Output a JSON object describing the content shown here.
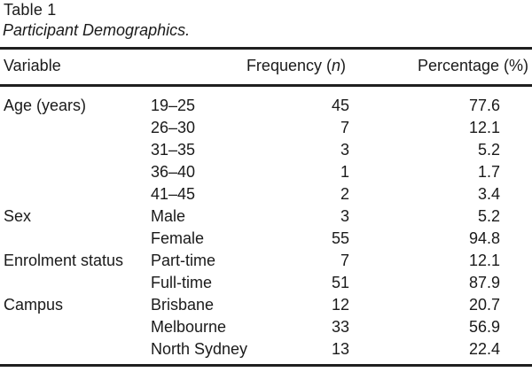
{
  "table": {
    "label": "Table 1",
    "caption": "Participant Demographics.",
    "headers": {
      "variable": "Variable",
      "frequency_pre": "Frequency (",
      "frequency_symbol": "n",
      "frequency_post": ")",
      "percentage": "Percentage (%)"
    },
    "rows": [
      {
        "variable": "Age (years)",
        "category": "19–25",
        "frequency": "45",
        "percentage": "77.6"
      },
      {
        "variable": "",
        "category": "26–30",
        "frequency": "7",
        "percentage": "12.1"
      },
      {
        "variable": "",
        "category": "31–35",
        "frequency": "3",
        "percentage": "5.2"
      },
      {
        "variable": "",
        "category": "36–40",
        "frequency": "1",
        "percentage": "1.7"
      },
      {
        "variable": "",
        "category": "41–45",
        "frequency": "2",
        "percentage": "3.4"
      },
      {
        "variable": "Sex",
        "category": "Male",
        "frequency": "3",
        "percentage": "5.2"
      },
      {
        "variable": "",
        "category": "Female",
        "frequency": "55",
        "percentage": "94.8"
      },
      {
        "variable": "Enrolment status",
        "category": "Part-time",
        "frequency": "7",
        "percentage": "12.1"
      },
      {
        "variable": "",
        "category": "Full-time",
        "frequency": "51",
        "percentage": "87.9"
      },
      {
        "variable": "Campus",
        "category": "Brisbane",
        "frequency": "12",
        "percentage": "20.7"
      },
      {
        "variable": "",
        "category": "Melbourne",
        "frequency": "33",
        "percentage": "56.9"
      },
      {
        "variable": "",
        "category": "North Sydney",
        "frequency": "13",
        "percentage": "22.4"
      }
    ]
  },
  "colors": {
    "background": "#ffffff",
    "text": "#1a1a1a",
    "rule": "#1f1f1f"
  }
}
